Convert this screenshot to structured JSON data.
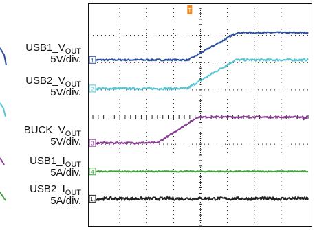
{
  "colors": {
    "usb1_vout": "#2b4f9e",
    "usb2_vout": "#54c6d4",
    "buck_vout": "#8b3a96",
    "usb1_iout": "#3ea33a",
    "usb2_iout": "#222222",
    "trigger": "#f08a24",
    "grid": "#222222"
  },
  "trigger_marker": "T",
  "channels": [
    {
      "name": "USB1_V",
      "sub": "OUT",
      "scale": "5V/div.",
      "marker": "1"
    },
    {
      "name": "USB2_V",
      "sub": "OUT",
      "scale": "5V/div.",
      "marker": "2"
    },
    {
      "name": "BUCK_V",
      "sub": "OUT",
      "scale": "5V/div.",
      "marker": "3"
    },
    {
      "name": "USB1_I",
      "sub": "OUT",
      "scale": "5A/div.",
      "marker": "4"
    },
    {
      "name": "USB2_I",
      "sub": "OUT",
      "scale": "5A/div.",
      "marker": "1t"
    }
  ],
  "chart_data": {
    "type": "line",
    "title": "",
    "xlabel": "",
    "ylabel": "",
    "x_divisions": 8,
    "y_divisions": 8,
    "xlim": [
      0,
      8
    ],
    "ylim": [
      0,
      8
    ],
    "grid": true,
    "trigger_x_div": 3.6,
    "series": [
      {
        "name": "USB1_VOUT",
        "color_key": "usb1_vout",
        "x": [
          0,
          3.55,
          5.35,
          8
        ],
        "values": [
          6.1,
          6.1,
          7.1,
          7.1
        ],
        "noise": 0.03
      },
      {
        "name": "USB2_VOUT",
        "color_key": "usb2_vout",
        "x": [
          0,
          3.5,
          5.3,
          8
        ],
        "values": [
          5.05,
          5.05,
          6.1,
          6.1
        ],
        "noise": 0.04
      },
      {
        "name": "BUCK_VOUT",
        "color_key": "buck_vout",
        "x": [
          0,
          2.4,
          3.9,
          8
        ],
        "values": [
          3.05,
          3.05,
          4.0,
          4.0
        ],
        "noise": 0.03
      },
      {
        "name": "USB1_IOUT",
        "color_key": "usb1_iout",
        "x": [
          0,
          8
        ],
        "values": [
          2.0,
          2.0
        ],
        "noise": 0.02
      },
      {
        "name": "USB2_IOUT",
        "color_key": "usb2_iout",
        "x": [
          0,
          8
        ],
        "values": [
          1.0,
          1.0
        ],
        "noise": 0.06
      }
    ]
  }
}
